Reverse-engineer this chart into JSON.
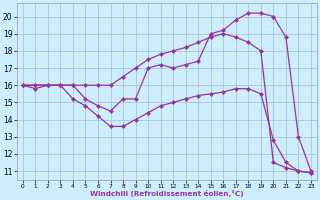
{
  "bg_color": "#cceeff",
  "line_color": "#993399",
  "grid_color": "#aabbcc",
  "xlabel": "Windchill (Refroidissement éolien,°C)",
  "xlim_min": -0.5,
  "xlim_max": 23.5,
  "ylim_min": 10.5,
  "ylim_max": 20.8,
  "xticks": [
    0,
    1,
    2,
    3,
    4,
    5,
    6,
    7,
    8,
    9,
    10,
    11,
    12,
    13,
    14,
    15,
    16,
    17,
    18,
    19,
    20,
    21,
    22,
    23
  ],
  "yticks": [
    11,
    12,
    13,
    14,
    15,
    16,
    17,
    18,
    19,
    20
  ],
  "line1_x": [
    0,
    1,
    2,
    3,
    4,
    5,
    6,
    7,
    8,
    9,
    10,
    11,
    12,
    13,
    14,
    15,
    16,
    17,
    18,
    19,
    20,
    21,
    22,
    23
  ],
  "line1_y": [
    16.0,
    16.0,
    16.0,
    16.0,
    16.0,
    15.2,
    14.8,
    14.5,
    15.2,
    15.2,
    17.0,
    17.2,
    17.0,
    17.2,
    17.4,
    19.0,
    19.2,
    19.8,
    20.2,
    20.2,
    20.0,
    18.8,
    13.0,
    11.0
  ],
  "line2_x": [
    0,
    1,
    2,
    3,
    4,
    5,
    6,
    7,
    8,
    9,
    10,
    11,
    12,
    13,
    14,
    15,
    16,
    17,
    18,
    19,
    20,
    21,
    22,
    23
  ],
  "line2_y": [
    16.0,
    16.0,
    16.0,
    16.0,
    16.0,
    16.0,
    16.0,
    16.0,
    16.5,
    17.0,
    17.5,
    17.8,
    18.0,
    18.2,
    18.5,
    18.8,
    19.0,
    18.8,
    18.5,
    18.0,
    11.5,
    11.2,
    11.0,
    10.9
  ],
  "line3_x": [
    0,
    1,
    2,
    3,
    4,
    5,
    6,
    7,
    8,
    9,
    10,
    11,
    12,
    13,
    14,
    15,
    16,
    17,
    18,
    19,
    20,
    21,
    22,
    23
  ],
  "line3_y": [
    16.0,
    15.8,
    16.0,
    16.0,
    15.2,
    14.8,
    14.2,
    13.6,
    13.6,
    14.0,
    14.4,
    14.8,
    15.0,
    15.2,
    15.4,
    15.5,
    15.6,
    15.8,
    15.8,
    15.5,
    12.8,
    11.5,
    11.0,
    10.9
  ]
}
